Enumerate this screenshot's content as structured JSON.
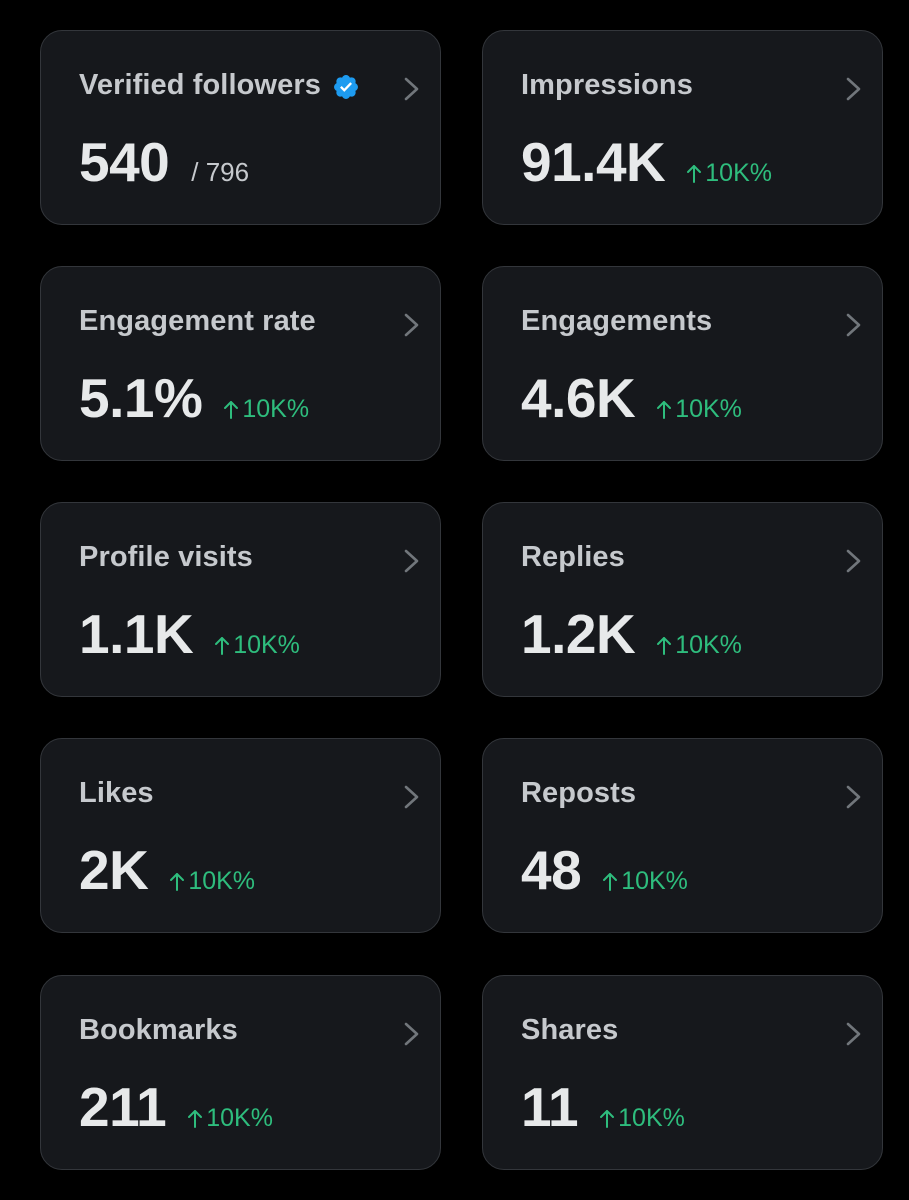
{
  "colors": {
    "background": "#000000",
    "card": "#16181c",
    "card_border": "#33363b",
    "value": "#e7e9ea",
    "label": "#c6c9cd",
    "positive": "#2ebd7d",
    "verified": "#1d9bf0"
  },
  "cards": [
    {
      "title": "Verified followers",
      "value": "540",
      "total": "/ 796",
      "icon": "verified-badge-icon"
    },
    {
      "title": "Impressions",
      "value": "91.4K",
      "change": "10K%"
    },
    {
      "title": "Engagement rate",
      "value": "5.1%",
      "change": "10K%"
    },
    {
      "title": "Engagements",
      "value": "4.6K",
      "change": "10K%"
    },
    {
      "title": "Profile visits",
      "value": "1.1K",
      "change": "10K%"
    },
    {
      "title": "Replies",
      "value": "1.2K",
      "change": "10K%"
    },
    {
      "title": "Likes",
      "value": "2K",
      "change": "10K%"
    },
    {
      "title": "Reposts",
      "value": "48",
      "change": "10K%"
    },
    {
      "title": "Bookmarks",
      "value": "211",
      "change": "10K%"
    },
    {
      "title": "Shares",
      "value": "11",
      "change": "10K%"
    }
  ]
}
